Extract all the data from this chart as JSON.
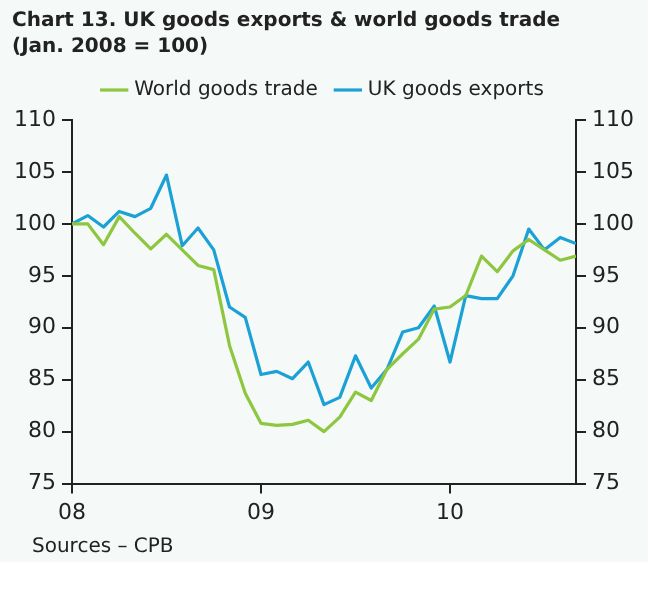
{
  "chart_data": {
    "type": "line",
    "title": "Chart 13. UK goods exports & world goods trade",
    "subtitle": "(Jan. 2008 = 100)",
    "x": [
      2008,
      2008.0833,
      2008.1667,
      2008.25,
      2008.3333,
      2008.4167,
      2008.5,
      2008.5833,
      2008.6667,
      2008.75,
      2008.8333,
      2008.9167,
      2009,
      2009.0833,
      2009.1667,
      2009.25,
      2009.3333,
      2009.4167,
      2009.5,
      2009.5833,
      2009.6667,
      2009.75,
      2009.8333,
      2009.9167,
      2010,
      2010.0833,
      2010.1667,
      2010.25,
      2010.3333,
      2010.4167,
      2010.5,
      2010.5833,
      2010.6667
    ],
    "series": [
      {
        "name": "World goods trade",
        "color": "#8dc63f",
        "values": [
          100,
          100,
          98,
          100.7,
          99.1,
          97.6,
          99,
          97.5,
          96,
          95.6,
          88.3,
          83.7,
          80.8,
          80.6,
          80.7,
          81.1,
          80,
          81.4,
          83.8,
          83,
          86,
          87.5,
          88.9,
          91.8,
          92,
          93.1,
          96.9,
          95.4,
          97.4,
          98.5,
          97.5,
          96.5,
          96.9
        ]
      },
      {
        "name": "UK goods exports",
        "color": "#1ba1d6",
        "values": [
          100,
          100.8,
          99.7,
          101.2,
          100.7,
          101.5,
          104.7,
          97.9,
          99.6,
          97.5,
          92,
          91,
          85.5,
          85.8,
          85.1,
          86.7,
          82.6,
          83.3,
          87.3,
          84.2,
          86,
          89.6,
          90,
          92.1,
          86.7,
          93.1,
          92.8,
          92.8,
          95,
          99.5,
          97.5,
          98.7,
          98.1
        ]
      }
    ],
    "xlim": [
      2008,
      2010.6667
    ],
    "xticks": [
      {
        "value": 2008,
        "label": "08"
      },
      {
        "value": 2009,
        "label": "09"
      },
      {
        "value": 2010,
        "label": "10"
      }
    ],
    "ylim": [
      75,
      110
    ],
    "yticks": [
      75,
      80,
      85,
      90,
      95,
      100,
      105,
      110
    ],
    "y2lim": [
      75,
      110
    ],
    "y2ticks": [
      75,
      80,
      85,
      90,
      95,
      100,
      105,
      110
    ],
    "legend": "top",
    "grid": false,
    "marker": "none",
    "line_style": "solid",
    "annotations": [
      "Sources – CPB"
    ]
  }
}
